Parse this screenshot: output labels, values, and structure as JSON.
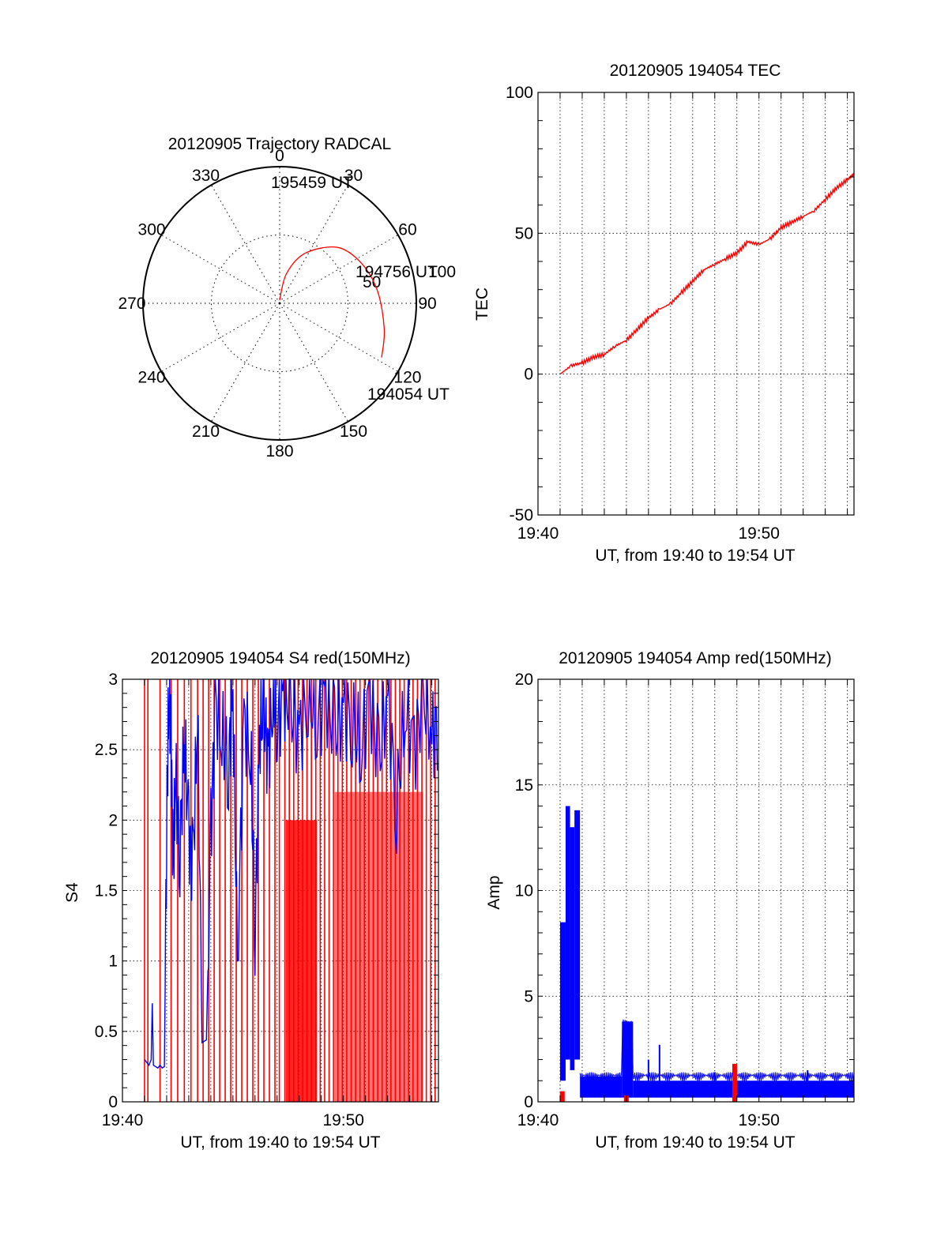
{
  "chart_data": [
    {
      "type": "polar",
      "title": "20120905 Trajectory RADCAL",
      "angle_labels": [
        "0",
        "30",
        "60",
        "90",
        "120",
        "150",
        "180",
        "210",
        "240",
        "270",
        "300",
        "330"
      ],
      "radius_labels": [
        "50",
        "100"
      ],
      "track": {
        "color": "#ff0000",
        "points": [
          {
            "time": "195459 UT",
            "azimuth": -1,
            "elevation": 88
          },
          {
            "azimuth": 13,
            "elevation": 70
          },
          {
            "azimuth": 27,
            "elevation": 53
          },
          {
            "time": "194756 UT",
            "azimuth": 46,
            "elevation": 37
          },
          {
            "azimuth": 64,
            "elevation": 30
          },
          {
            "azimuth": 83,
            "elevation": 25
          },
          {
            "azimuth": 104,
            "elevation": 19
          },
          {
            "time": "194054 UT",
            "azimuth": 118,
            "elevation": 14
          }
        ]
      }
    },
    {
      "type": "line",
      "title": "20120905 194054 TEC",
      "ylabel": "TEC",
      "xlabel": "UT, from 19:40 to 19:54 UT",
      "xlim": [
        0,
        14.3
      ],
      "ylim": [
        -50,
        100
      ],
      "xticks": [
        {
          "value": 0,
          "label": "19:40"
        },
        {
          "value": 10,
          "label": "19:50"
        }
      ],
      "yticks": [
        "-50",
        "0",
        "50",
        "100"
      ],
      "series": [
        {
          "color": "#ff0000",
          "x": [
            1.0,
            1.5,
            2.0,
            2.5,
            3.0,
            3.5,
            4.0,
            4.5,
            5.0,
            5.5,
            6.0,
            6.5,
            7.0,
            7.5,
            8.0,
            8.5,
            9.0,
            9.5,
            10.0,
            10.5,
            11.0,
            11.5,
            12.0,
            12.5,
            13.0,
            13.5,
            14.0,
            14.3
          ],
          "y": [
            0,
            3,
            4,
            6,
            7,
            10,
            12,
            16,
            20,
            23,
            25,
            29,
            33,
            37,
            39,
            41,
            43,
            47,
            46,
            48,
            52,
            54,
            56,
            58,
            62,
            66,
            69,
            71
          ]
        }
      ]
    },
    {
      "type": "line",
      "title": "20120905 194054 S4 red(150MHz)",
      "ylabel": "S4",
      "xlabel": "UT, from 19:40 to 19:54 UT",
      "xlim": [
        0,
        14.3
      ],
      "ylim": [
        0,
        3
      ],
      "xticks": [
        {
          "value": 0,
          "label": "19:40"
        },
        {
          "value": 10,
          "label": "19:50"
        }
      ],
      "yticks": [
        "0",
        "0.5",
        "1",
        "1.5",
        "2",
        "2.5",
        "3"
      ],
      "series": [
        {
          "color": "#ff0000",
          "spikes": [
            1.0,
            1.15,
            1.7,
            2.2,
            2.5,
            2.8,
            3.1,
            3.4,
            3.65,
            3.9,
            4.15,
            4.4,
            4.65,
            4.9,
            5.15,
            5.4,
            5.65,
            5.9,
            6.15,
            6.4,
            6.65,
            6.9,
            7.1,
            7.35,
            7.55,
            7.75,
            7.95,
            8.15,
            8.35,
            8.55,
            8.75,
            8.95,
            9.15,
            9.35,
            9.55,
            9.75,
            9.95,
            10.15,
            10.35,
            10.55,
            10.75,
            10.95,
            11.15,
            11.35,
            11.55,
            11.75,
            11.95,
            12.15,
            12.35,
            12.55,
            12.75,
            12.95,
            13.15,
            13.35,
            13.55,
            13.75,
            13.95,
            14.15
          ]
        },
        {
          "color": "#0000ff",
          "x": [
            1.0,
            1.1,
            1.2,
            1.3,
            1.35,
            1.4,
            1.5,
            1.6,
            1.7,
            1.8,
            1.9,
            2.0,
            2.1,
            2.2,
            2.3,
            2.4,
            2.6,
            2.8,
            3.0,
            3.2,
            3.4,
            3.6,
            3.8,
            4.0,
            4.2,
            4.5,
            4.8,
            5.0,
            5.2,
            5.5,
            5.8,
            6.0,
            6.2,
            6.4,
            6.6,
            6.8,
            7.0,
            7.3,
            7.6,
            8.0,
            8.4,
            8.8,
            9.2,
            9.6,
            10.0,
            10.4,
            10.8,
            11.2,
            11.6,
            12.0,
            12.4,
            12.8,
            13.2,
            13.6,
            14.0,
            14.3
          ],
          "y": [
            0.3,
            0.28,
            0.26,
            0.3,
            0.7,
            0.26,
            0.25,
            0.24,
            0.26,
            0.24,
            0.25,
            2.0,
            2.9,
            2.6,
            1.6,
            2.3,
            1.8,
            2.6,
            1.9,
            1.7,
            2.8,
            0.42,
            0.44,
            1.9,
            2.8,
            2.6,
            2.4,
            2.9,
            1.0,
            2.7,
            2.5,
            1.2,
            2.6,
            2.8,
            2.4,
            2.9,
            2.7,
            2.9,
            2.8,
            2.6,
            2.9,
            2.7,
            2.9,
            2.6,
            2.8,
            2.7,
            2.5,
            2.9,
            2.4,
            2.9,
            2.1,
            2.8,
            2.5,
            2.9,
            2.6,
            2.7
          ]
        }
      ]
    },
    {
      "type": "line",
      "title": "20120905 194054 Amp red(150MHz)",
      "ylabel": "Amp",
      "xlabel": "UT, from 19:40 to 19:54 UT",
      "xlim": [
        0,
        14.3
      ],
      "ylim": [
        0,
        20
      ],
      "xticks": [
        {
          "value": 0,
          "label": "19:40"
        },
        {
          "value": 10,
          "label": "19:50"
        }
      ],
      "yticks": [
        "0",
        "5",
        "10",
        "15",
        "20"
      ],
      "series": [
        {
          "color": "#0000ff",
          "bands": [
            {
              "x0": 1.0,
              "x1": 1.25,
              "lo": 1.0,
              "hi": 8.5
            },
            {
              "x0": 1.25,
              "x1": 1.45,
              "lo": 2.0,
              "hi": 14.0
            },
            {
              "x0": 1.45,
              "x1": 1.65,
              "lo": 1.5,
              "hi": 13.0
            },
            {
              "x0": 1.65,
              "x1": 1.9,
              "lo": 2.0,
              "hi": 13.8
            },
            {
              "x0": 1.9,
              "x1": 3.8,
              "lo": 0.2,
              "hi": 1.2
            },
            {
              "x0": 3.8,
              "x1": 4.3,
              "lo": 0.2,
              "hi": 3.8
            },
            {
              "x0": 4.3,
              "x1": 14.3,
              "lo": 0.2,
              "hi": 1.0
            }
          ],
          "peaks": [
            {
              "x": 5.5,
              "y": 2.7
            },
            {
              "x": 5.0,
              "y": 2.0
            },
            {
              "x": 8.0,
              "y": 1.4
            },
            {
              "x": 12.2,
              "y": 1.5
            }
          ]
        },
        {
          "color": "#ff0000",
          "peaks": [
            {
              "x": 1.1,
              "y": 0.5
            },
            {
              "x": 4.0,
              "y": 0.3
            },
            {
              "x": 8.9,
              "y": 1.8
            }
          ]
        }
      ]
    }
  ]
}
